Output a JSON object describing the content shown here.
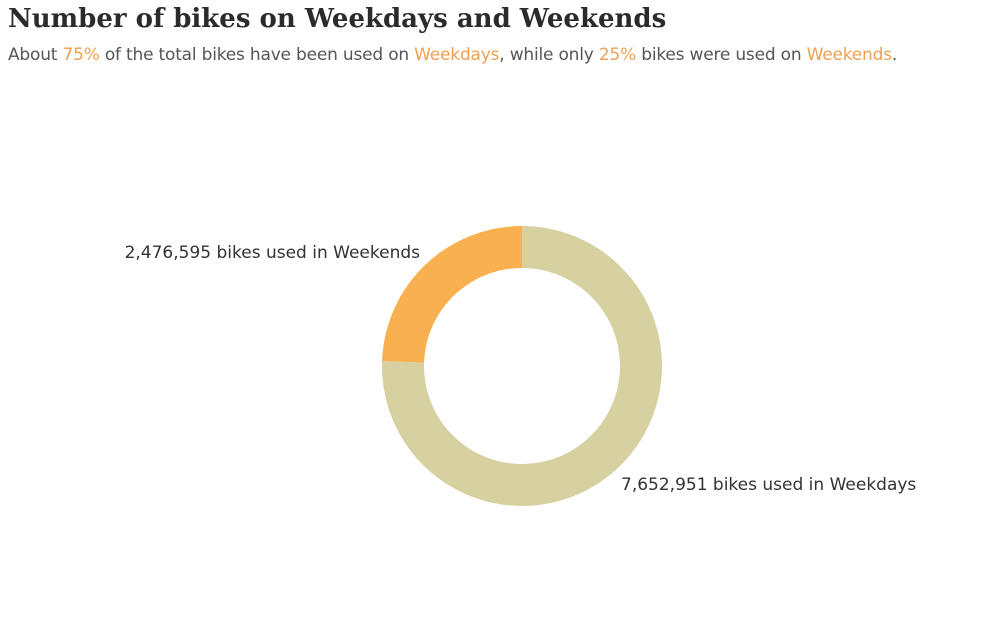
{
  "title": "Number of bikes on Weekdays and Weekends",
  "subtitle": {
    "t1": "About ",
    "t2": "75%",
    "t3": " of the total bikes have been used on ",
    "t4": "Weekdays",
    "t5": ", while only ",
    "t6": "25%",
    "t7": " bikes were used on ",
    "t8": "Weekends",
    "t9": "."
  },
  "colors": {
    "highlight": "#f0a050",
    "weekends": "#f9b050",
    "weekdays": "#d7d0a0"
  },
  "chart_data": {
    "type": "pie",
    "variant": "donut",
    "title": "Number of bikes on Weekdays and Weekends",
    "slices": [
      {
        "key": "weekends",
        "value": 2476595,
        "label": "2,476,595 bikes used in Weekends",
        "color": "#f9b050"
      },
      {
        "key": "weekdays",
        "value": 7652951,
        "label": "7,652,951 bikes used in Weekdays",
        "color": "#d7d0a0"
      }
    ]
  }
}
